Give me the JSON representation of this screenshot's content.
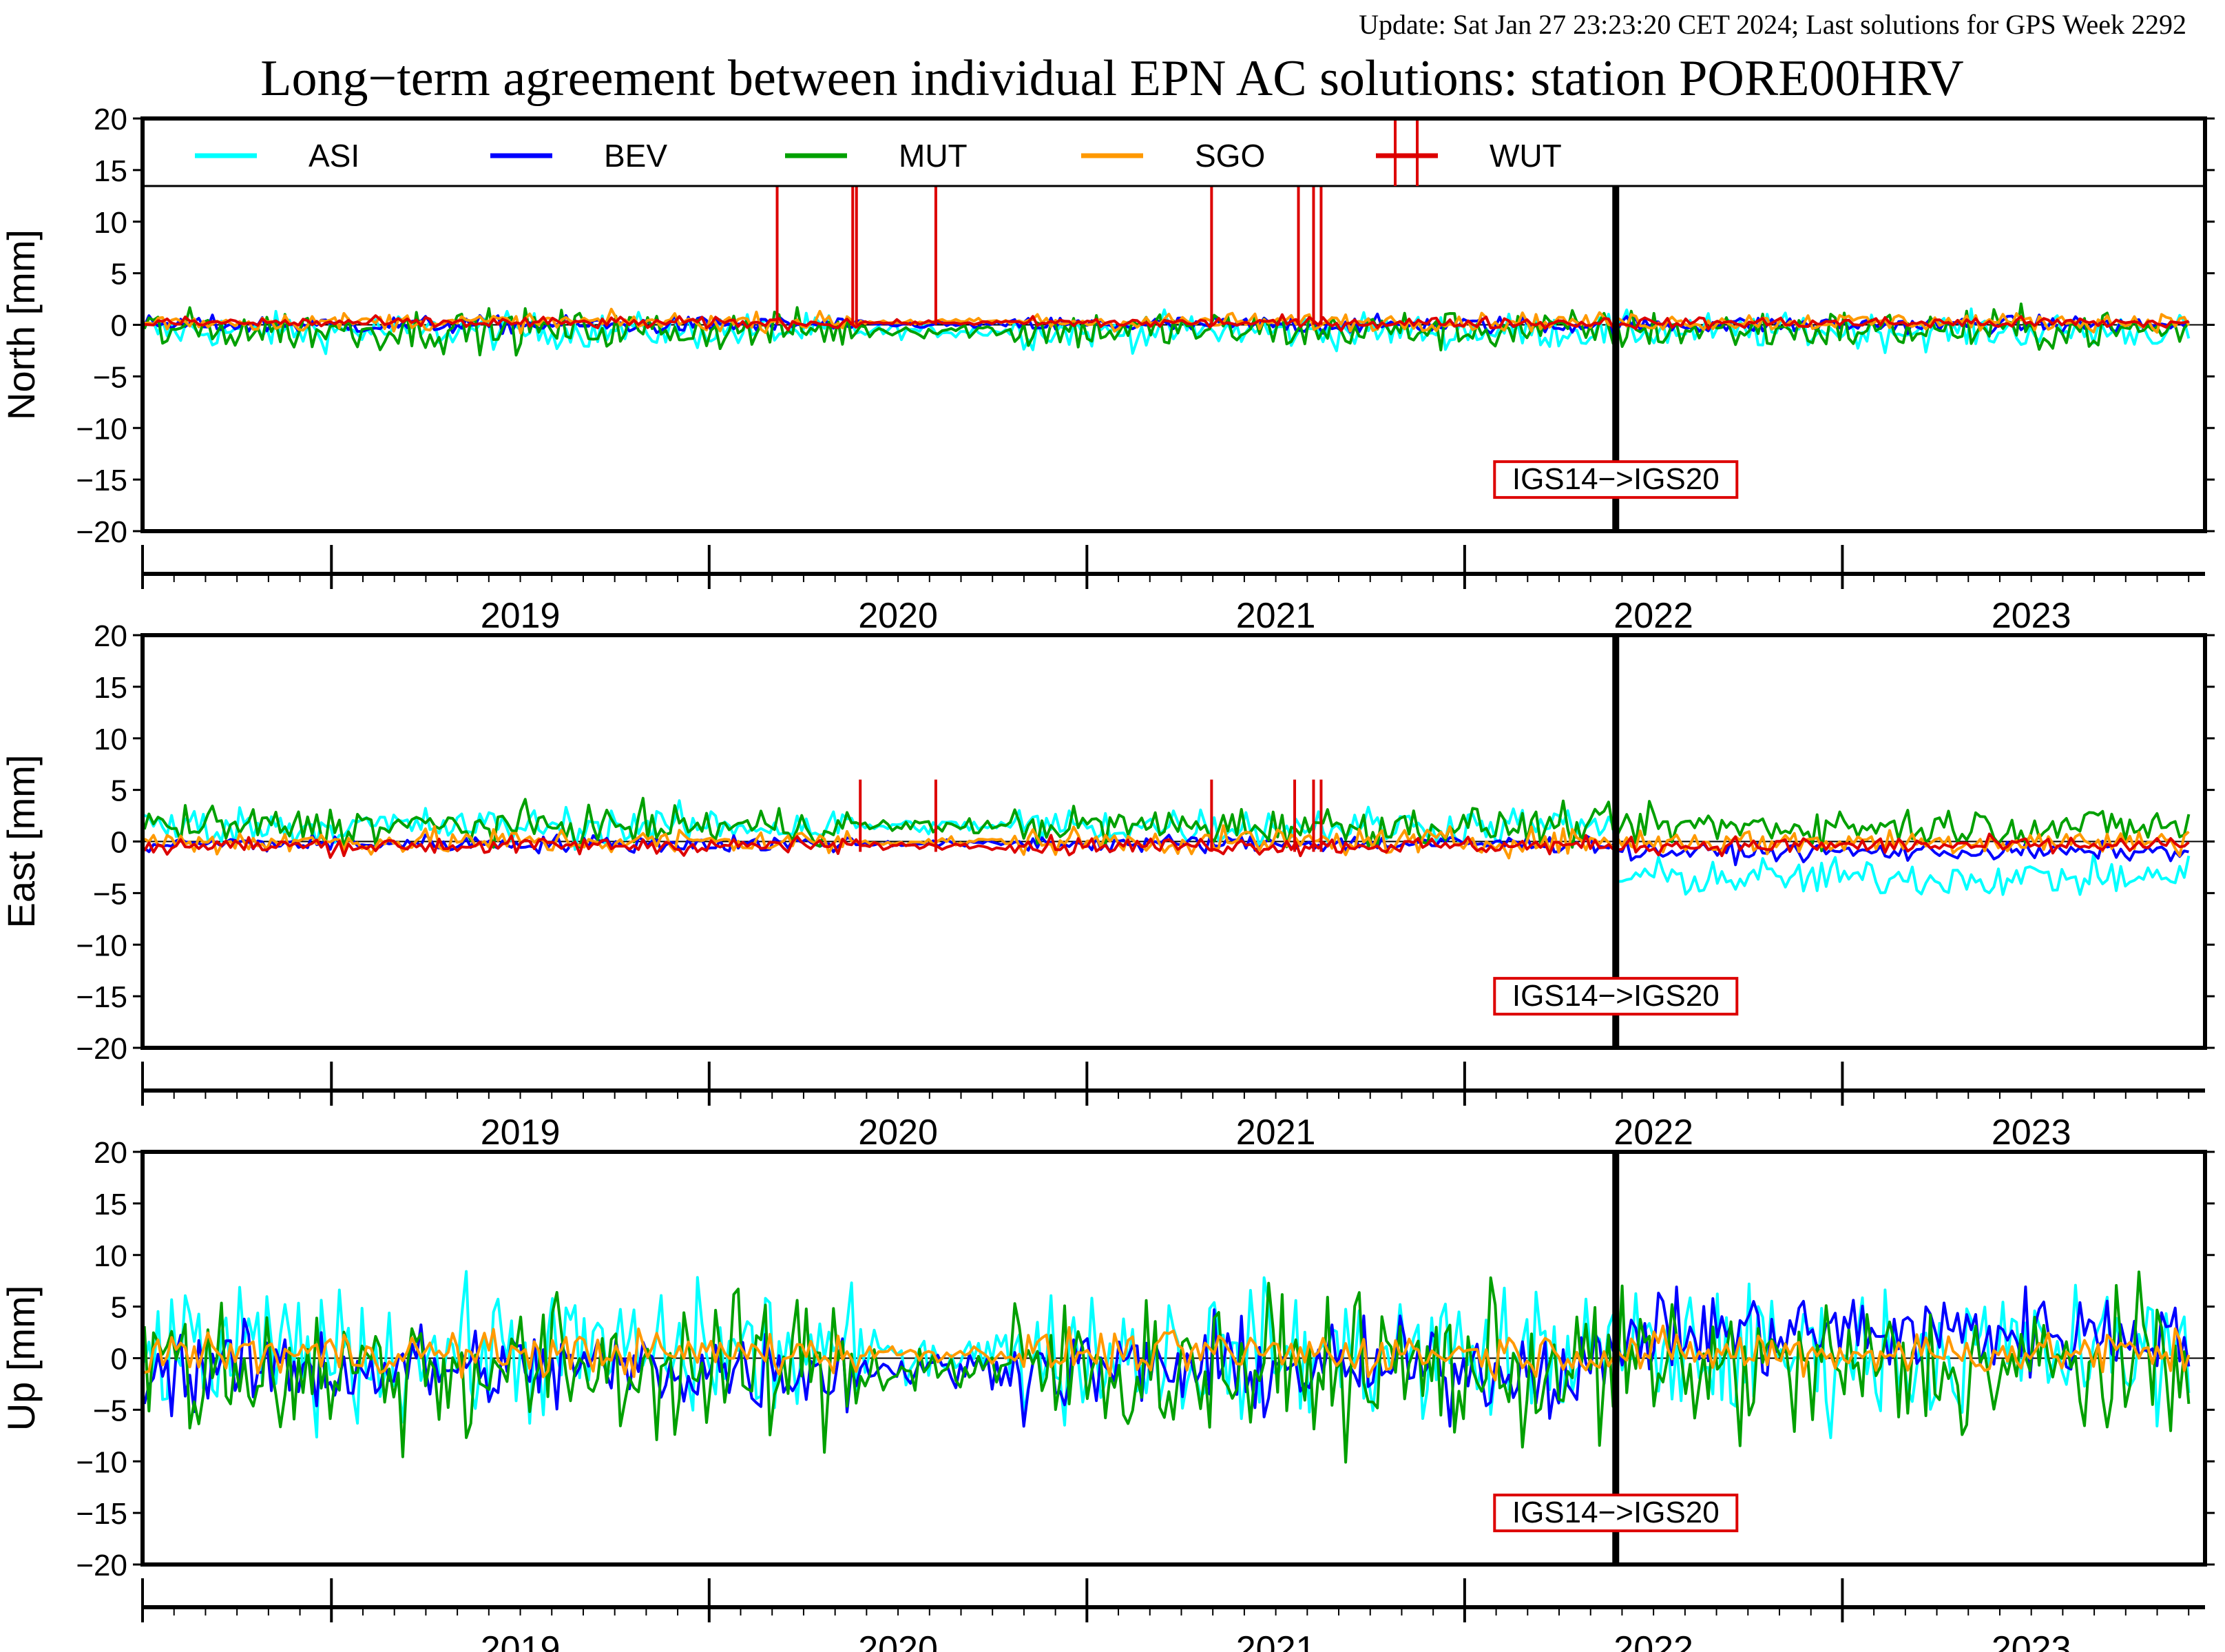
{
  "update_text": "Update: Sat Jan 27 23:23:20 CET 2024; Last solutions for GPS Week 2292",
  "title": "Long−term agreement between individual EPN AC solutions: station PORE00HRV",
  "colors": {
    "ASI": "#00ffff",
    "BEV": "#0000ff",
    "MUT": "#00a000",
    "SGO": "#ff9900",
    "WUT": "#dd0000",
    "update_text": "#8b0000",
    "frame_change_box": "#dd0000"
  },
  "chart_data": [
    {
      "type": "line",
      "id": "north",
      "ylabel": "North [mm]",
      "ylim": [
        -20,
        20
      ],
      "yticks": [
        20,
        15,
        10,
        5,
        0,
        -5,
        -10,
        -15,
        -20
      ],
      "xlim": [
        2018.5,
        2023.96
      ],
      "x_tick_labels": [
        "2019",
        "2020",
        "2021",
        "2022",
        "2023"
      ],
      "legend": {
        "placement": "top",
        "entries": [
          "ASI",
          "BEV",
          "MUT",
          "SGO",
          "WUT"
        ]
      },
      "annotation": {
        "text": "IGS14−>IGS20",
        "x": 2022.4
      },
      "series": [
        {
          "name": "ASI",
          "spread": 1.2,
          "bias": -0.6
        },
        {
          "name": "BEV",
          "spread": 0.6,
          "bias": 0.0
        },
        {
          "name": "MUT",
          "spread": 1.4,
          "bias": -0.5
        },
        {
          "name": "SGO",
          "spread": 0.6,
          "bias": 0.3
        },
        {
          "name": "WUT",
          "spread": 0.4,
          "bias": 0.2,
          "spikes": [
            2020.18,
            2020.38,
            2020.39,
            2020.6,
            2021.33,
            2021.56,
            2021.6,
            2021.62
          ]
        }
      ]
    },
    {
      "type": "line",
      "id": "east",
      "ylabel": "East [mm]",
      "ylim": [
        -20,
        20
      ],
      "yticks": [
        20,
        15,
        10,
        5,
        0,
        -5,
        -10,
        -15,
        -20
      ],
      "xlim": [
        2018.5,
        2023.96
      ],
      "x_tick_labels": [
        "2019",
        "2020",
        "2021",
        "2022",
        "2023"
      ],
      "annotation": {
        "text": "IGS14−>IGS20",
        "x": 2022.4
      },
      "series": [
        {
          "name": "ASI",
          "spread": 1.3,
          "bias": 1.5,
          "bias_after": -3.5
        },
        {
          "name": "BEV",
          "spread": 0.6,
          "bias": -0.2,
          "bias_after": -1.0
        },
        {
          "name": "MUT",
          "spread": 1.3,
          "bias": 1.5
        },
        {
          "name": "SGO",
          "spread": 0.9,
          "bias": 0.0
        },
        {
          "name": "WUT",
          "spread": 0.6,
          "bias": -0.4,
          "spikes": [
            2020.4,
            2020.6,
            2021.33,
            2021.55,
            2021.6,
            2021.62
          ]
        }
      ]
    },
    {
      "type": "line",
      "id": "up",
      "ylabel": "Up [mm]",
      "ylim": [
        -20,
        20
      ],
      "yticks": [
        20,
        15,
        10,
        5,
        0,
        -5,
        -10,
        -15,
        -20
      ],
      "xlim": [
        2018.5,
        2023.96
      ],
      "x_tick_labels": [
        "2019",
        "2020",
        "2021",
        "2022",
        "2023"
      ],
      "annotation": {
        "text": "IGS14−>IGS20",
        "x": 2022.4
      },
      "series": [
        {
          "name": "ASI",
          "spread": 4.5,
          "bias": 0.5
        },
        {
          "name": "BEV",
          "spread": 3.0,
          "bias": -1.0,
          "bias_after": 2.5
        },
        {
          "name": "MUT",
          "spread": 5.0,
          "bias": -1.0
        },
        {
          "name": "SGO",
          "spread": 1.5,
          "bias": 0.5
        },
        {
          "name": "WUT",
          "spread": 0.0,
          "bias": 0.0
        }
      ]
    }
  ]
}
